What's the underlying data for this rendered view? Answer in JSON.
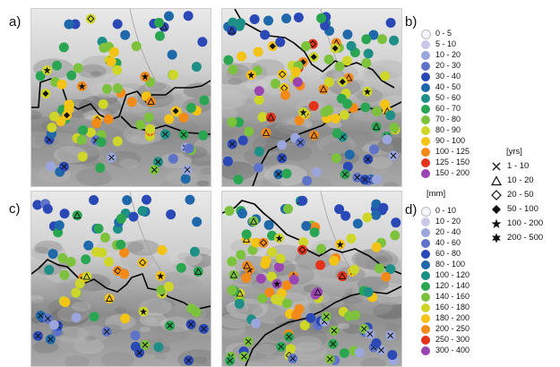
{
  "panels": {
    "a": "a)",
    "b": "b)",
    "c": "c)",
    "d": "d)"
  },
  "legend_top": {
    "items": [
      {
        "label": "0 - 5",
        "color": "#f4f4fb"
      },
      {
        "label": "5 - 10",
        "color": "#c8c8e8"
      },
      {
        "label": "10 - 20",
        "color": "#9aa6dc"
      },
      {
        "label": "20 - 30",
        "color": "#5f74c8"
      },
      {
        "label": "30 - 40",
        "color": "#2a49b6"
      },
      {
        "label": "40 - 50",
        "color": "#1f68a9"
      },
      {
        "label": "50 - 60",
        "color": "#1d8f86"
      },
      {
        "label": "60 - 70",
        "color": "#2aa653"
      },
      {
        "label": "70 - 80",
        "color": "#7cc23d"
      },
      {
        "label": "80 - 90",
        "color": "#cfd62a"
      },
      {
        "label": "90 - 100",
        "color": "#f3c316"
      },
      {
        "label": "100 - 125",
        "color": "#f28a1a"
      },
      {
        "label": "125 - 150",
        "color": "#e3331b"
      },
      {
        "label": "150 - 200",
        "color": "#9b45b2"
      }
    ]
  },
  "legend_bottom": {
    "unit": "[mm]",
    "items": [
      {
        "label": "0 - 10",
        "color": "#f4f4fb"
      },
      {
        "label": "10 - 20",
        "color": "#c8c8e8"
      },
      {
        "label": "20 - 40",
        "color": "#9aa6dc"
      },
      {
        "label": "40 - 60",
        "color": "#5f74c8"
      },
      {
        "label": "60 - 80",
        "color": "#2a49b6"
      },
      {
        "label": "80 - 100",
        "color": "#1f68a9"
      },
      {
        "label": "100 - 120",
        "color": "#1d8f86"
      },
      {
        "label": "120 - 140",
        "color": "#2aa653"
      },
      {
        "label": "140 - 160",
        "color": "#7cc23d"
      },
      {
        "label": "160 - 180",
        "color": "#cfd62a"
      },
      {
        "label": "180 - 200",
        "color": "#f3c316"
      },
      {
        "label": "200 - 250",
        "color": "#f28a1a"
      },
      {
        "label": "250 - 300",
        "color": "#e3331b"
      },
      {
        "label": "300 - 400",
        "color": "#9b45b2"
      }
    ]
  },
  "return_period_legend": {
    "unit": "[yrs]",
    "items": [
      {
        "label": "1 - 10",
        "icon": "cross-icon"
      },
      {
        "label": "10 - 20",
        "icon": "triangle-icon"
      },
      {
        "label": "20 - 50",
        "icon": "open-diamond-icon"
      },
      {
        "label": "50 - 100",
        "icon": "filled-diamond-icon"
      },
      {
        "label": "100 - 200",
        "icon": "five-point-star-icon"
      },
      {
        "label": "200 - 500",
        "icon": "six-point-star-icon"
      }
    ]
  },
  "colors": {
    "terrain_light": "#e6e6e6",
    "terrain_dark": "#6e6e6e",
    "border_line": "#000000",
    "river": "#9a9a9a"
  }
}
